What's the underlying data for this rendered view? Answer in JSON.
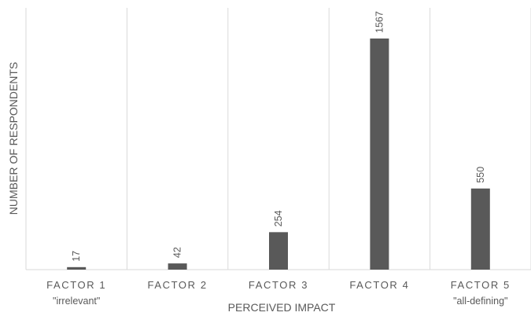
{
  "chart_data": {
    "type": "bar",
    "xlabel": "PERCEIVED IMPACT",
    "ylabel": "NUMBER OF RESPONDENTS",
    "categories": [
      "FACTOR 1",
      "FACTOR 2",
      "FACTOR 3",
      "FACTOR 4",
      "FACTOR 5"
    ],
    "category_sublabels": [
      "\"irrelevant\"",
      "",
      "",
      "",
      "\"all-defining\""
    ],
    "values": [
      17,
      42,
      254,
      1567,
      550
    ],
    "data_labels": [
      "17",
      "42",
      "254",
      "1567",
      "550"
    ],
    "ylim": [
      0,
      1750
    ],
    "bar_color": "#595959",
    "gridline_color": "#d9d9d9",
    "grid": "vertical separators between categories",
    "legend": "none"
  }
}
